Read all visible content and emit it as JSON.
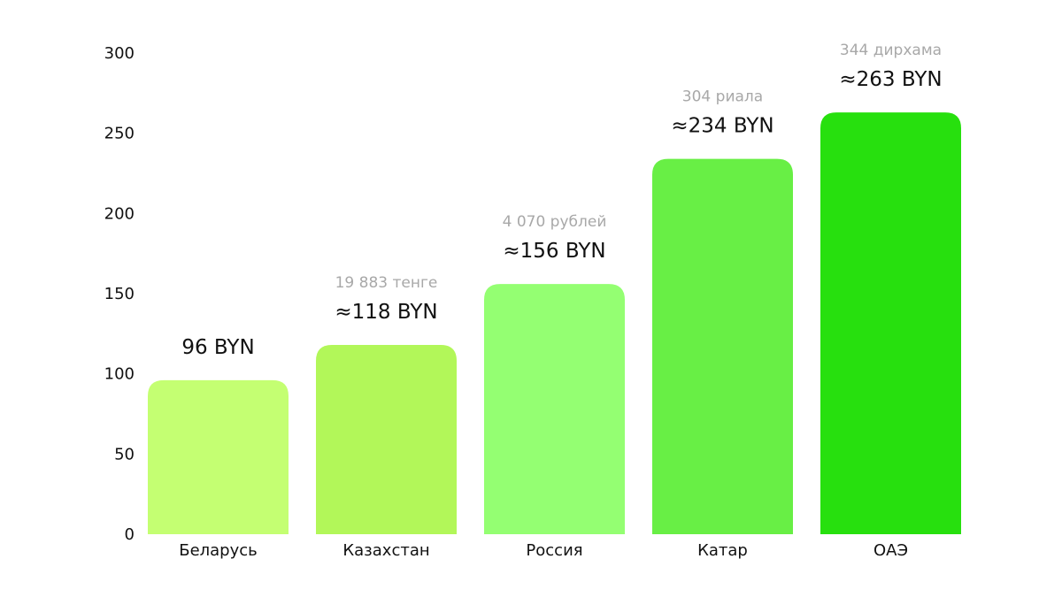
{
  "chart_data": {
    "type": "bar",
    "categories": [
      "Беларусь",
      "Казахстан",
      "Россия",
      "Катар",
      "ОАЭ"
    ],
    "values": [
      96,
      118,
      156,
      234,
      263
    ],
    "value_labels": [
      "96 BYN",
      "≈118 BYN",
      "≈156 BYN",
      "≈234 BYN",
      "≈263 BYN"
    ],
    "local_amount_labels": [
      "",
      "19 883 тенге",
      "4 070 рублей",
      "304 риала",
      "344 дирхама"
    ],
    "colors": [
      "#c4ff72",
      "#b2f759",
      "#94ff72",
      "#68ef45",
      "#27e00e"
    ],
    "label_color": "#111111",
    "sub_label_color": "#a8a8a8",
    "yticks": [
      0,
      50,
      100,
      150,
      200,
      250,
      300
    ],
    "ylim": [
      0,
      300
    ],
    "grid": false,
    "legend": false,
    "title": "",
    "xlabel": "",
    "ylabel": ""
  }
}
